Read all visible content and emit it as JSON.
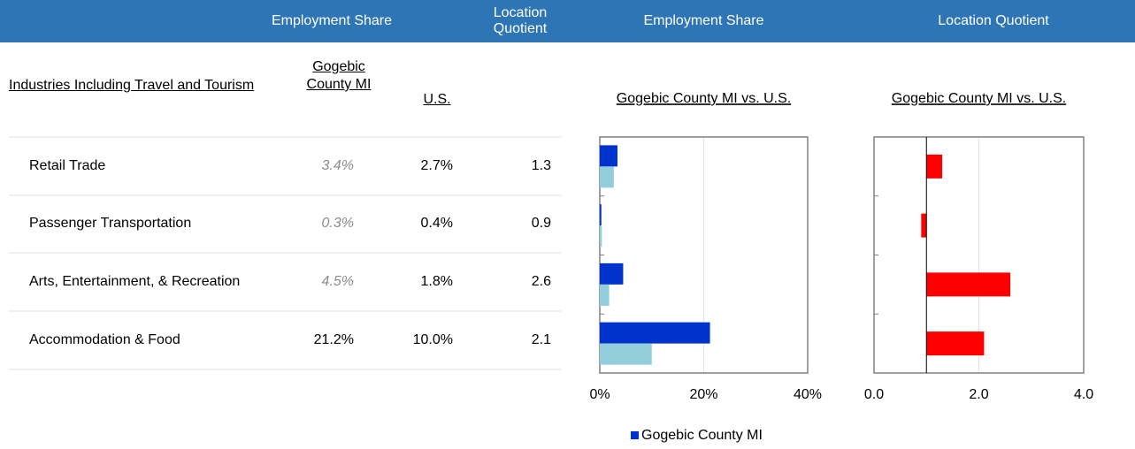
{
  "header": {
    "groups": [
      "Employment Share",
      "Location Quotient",
      "Employment Share",
      "Location Quotient"
    ]
  },
  "table": {
    "columns": [
      "Industries Including Travel and Tourism",
      "Gogebic County MI",
      "U.S."
    ],
    "rows": [
      [
        "Retail Trade",
        "3.4%",
        "2.7%",
        "1.3"
      ],
      [
        "Passenger Transportation",
        "0.3%",
        "0.4%",
        "0.9"
      ],
      [
        "Arts, Entertainment, & Recreation",
        "4.5%",
        "1.8%",
        "2.6"
      ],
      [
        "Accommodation & Food",
        "21.2%",
        "10.0%",
        "2.1"
      ]
    ],
    "muted": [
      true,
      true,
      true,
      false
    ]
  },
  "chart_data": [
    {
      "type": "bar",
      "orientation": "horizontal",
      "subtitle": "Gogebic County MI vs. U.S.",
      "series": [
        {
          "name": "Gogebic County MI",
          "color": "#0033cc",
          "values": [
            3.4,
            0.3,
            4.5,
            21.2
          ]
        },
        {
          "color": "#92cddc",
          "values": [
            2.7,
            0.4,
            1.8,
            10.0
          ]
        }
      ],
      "xlim": [
        0,
        40
      ],
      "xticks": [
        {
          "value": 0,
          "label": "0%"
        },
        {
          "value": 20,
          "label": "20%"
        },
        {
          "value": 40,
          "label": "40%"
        }
      ],
      "grid": true,
      "legend": "bottom"
    },
    {
      "type": "bar",
      "orientation": "horizontal",
      "subtitle": "Gogebic County MI vs. U.S.",
      "series": [
        {
          "color": "#ff0000",
          "values": [
            1.3,
            0.9,
            2.6,
            2.1
          ]
        }
      ],
      "base": 1,
      "xlim": [
        0,
        4
      ],
      "xticks": [
        {
          "value": 0,
          "label": "0.0"
        },
        {
          "value": 2,
          "label": "2.0"
        },
        {
          "value": 4,
          "label": "4.0"
        }
      ],
      "grid": true
    }
  ]
}
